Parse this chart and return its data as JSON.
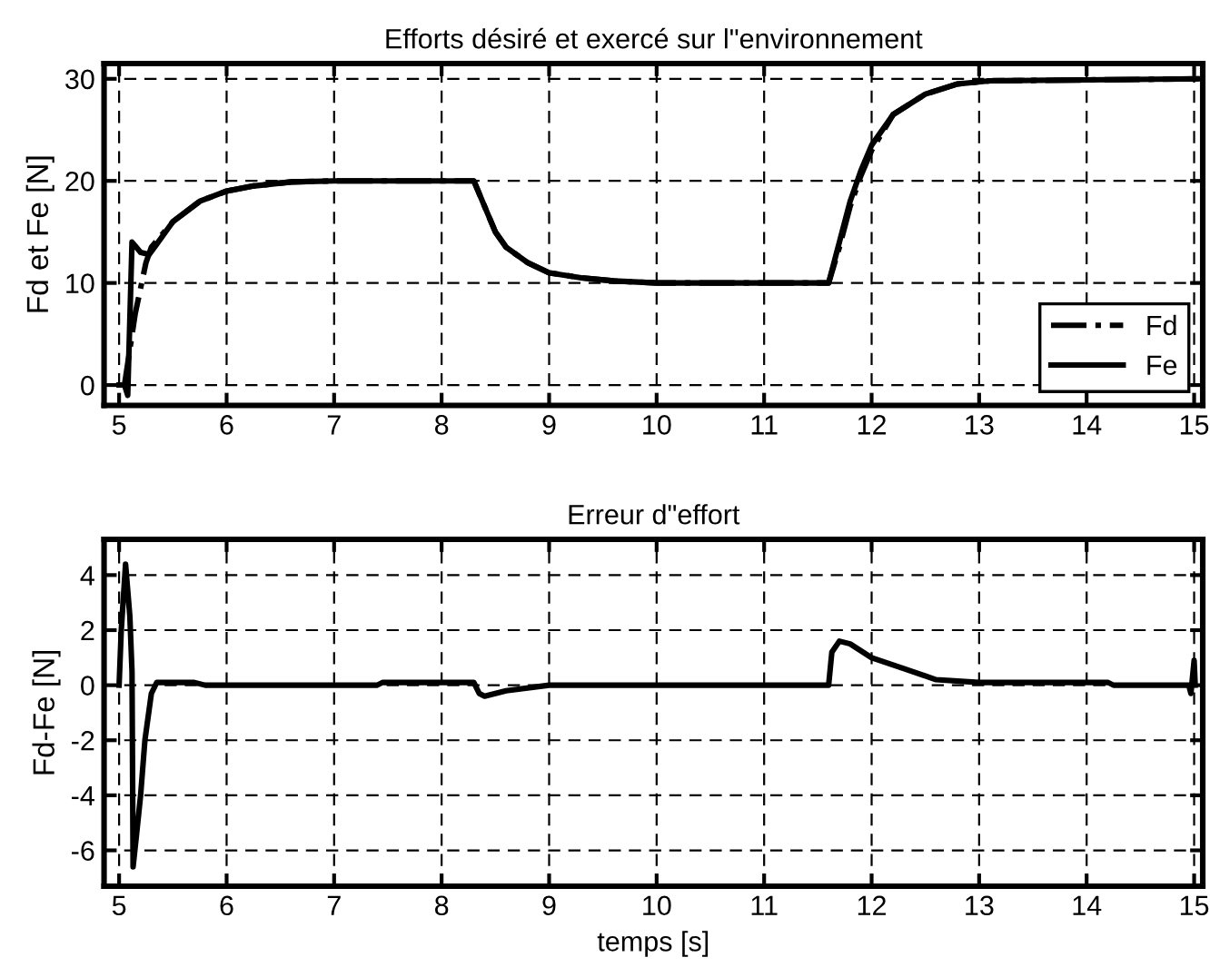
{
  "chart_data": [
    {
      "type": "line",
      "title": "Efforts désiré et exercé sur l\"environnement",
      "ylabel": "Fd et Fe [N]",
      "xlim": [
        4.86,
        15.08
      ],
      "xticks": [
        5,
        6,
        7,
        8,
        9,
        10,
        11,
        12,
        13,
        14,
        15
      ],
      "ylim": [
        -2,
        31.5
      ],
      "yticks": [
        0,
        10,
        20,
        30
      ],
      "grid": true,
      "legend": "bottom right",
      "series": [
        {
          "name": "Fd",
          "color": "#000000",
          "line_style": "dashdot",
          "x": [
            5.0,
            5.05,
            5.15,
            5.25,
            5.3,
            5.5,
            5.75,
            6.0,
            6.25,
            6.6,
            7.0,
            8.3,
            8.4,
            8.5,
            8.6,
            8.8,
            9.0,
            9.3,
            9.6,
            10.0,
            11.6,
            11.7,
            11.8,
            11.9,
            12.0,
            12.2,
            12.5,
            12.8,
            13.1,
            15.05
          ],
          "values": [
            0,
            0,
            7,
            12,
            13.5,
            16,
            18,
            19,
            19.5,
            19.9,
            20,
            20,
            17.5,
            15,
            13.5,
            12,
            11,
            10.5,
            10.2,
            10,
            10,
            13.5,
            17.5,
            20.5,
            23,
            26.5,
            28.5,
            29.5,
            29.8,
            30
          ]
        },
        {
          "name": "Fe",
          "color": "#000000",
          "line_style": "solid",
          "x": [
            5.0,
            5.05,
            5.08,
            5.12,
            5.16,
            5.2,
            5.28,
            5.35,
            5.5,
            5.75,
            6.0,
            6.25,
            6.6,
            7.0,
            8.3,
            8.4,
            8.5,
            8.6,
            8.8,
            9.0,
            9.3,
            9.6,
            10.0,
            11.6,
            11.7,
            11.8,
            11.9,
            12.0,
            12.2,
            12.5,
            12.8,
            13.1,
            15.05
          ],
          "values": [
            0,
            0,
            -1,
            14,
            13.5,
            13,
            12.8,
            13.8,
            16,
            18,
            19,
            19.5,
            19.9,
            20,
            20,
            17.5,
            15,
            13.5,
            12,
            11,
            10.5,
            10.2,
            10,
            10,
            14,
            18,
            21,
            23.5,
            26.5,
            28.5,
            29.5,
            29.8,
            30
          ]
        }
      ]
    },
    {
      "type": "line",
      "title": "Erreur d\"effort",
      "xlabel": "temps [s]",
      "ylabel": "Fd-Fe [N]",
      "xlim": [
        4.86,
        15.08
      ],
      "xticks": [
        5,
        6,
        7,
        8,
        9,
        10,
        11,
        12,
        13,
        14,
        15
      ],
      "ylim": [
        -7.3,
        5.3
      ],
      "yticks": [
        -6,
        -4,
        -2,
        0,
        2,
        4
      ],
      "grid": true,
      "series": [
        {
          "color": "#000000",
          "line_style": "solid",
          "x": [
            5.0,
            5.02,
            5.06,
            5.1,
            5.12,
            5.13,
            5.16,
            5.2,
            5.24,
            5.3,
            5.35,
            5.7,
            5.8,
            7.4,
            7.45,
            8.3,
            8.35,
            8.4,
            8.6,
            9.0,
            11.6,
            11.63,
            11.7,
            11.8,
            12.0,
            12.3,
            12.6,
            13.0,
            14.2,
            14.25,
            14.95,
            14.97,
            15.0,
            15.01
          ],
          "values": [
            0,
            2,
            4.4,
            2.5,
            0.5,
            -6.6,
            -5.5,
            -4,
            -2,
            -0.3,
            0.1,
            0.1,
            0,
            0,
            0.1,
            0.1,
            -0.3,
            -0.4,
            -0.2,
            0,
            0,
            1.2,
            1.6,
            1.5,
            1,
            0.6,
            0.2,
            0.1,
            0.1,
            0,
            0,
            -0.3,
            0.9,
            0
          ]
        }
      ]
    }
  ]
}
